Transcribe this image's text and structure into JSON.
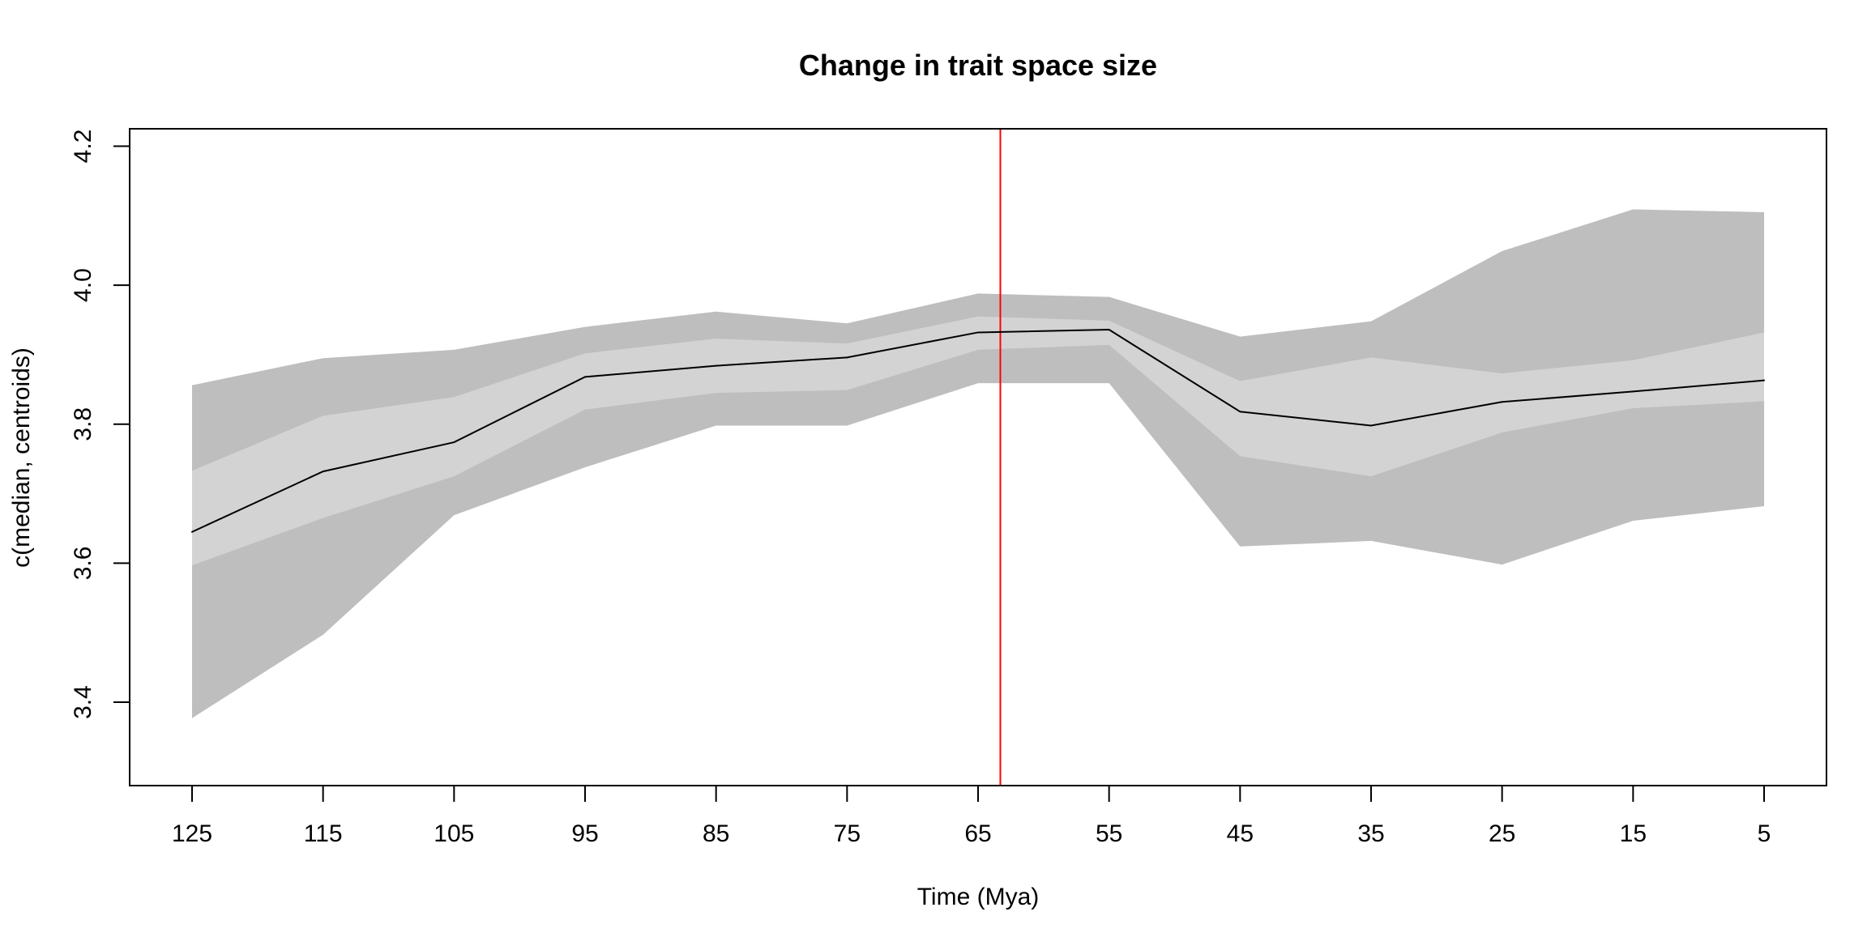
{
  "chart_data": {
    "type": "line",
    "title": "Change in trait space size",
    "xlabel": "Time (Mya)",
    "ylabel": "c(median, centroids)",
    "x": [
      125,
      115,
      105,
      95,
      85,
      75,
      65,
      55,
      45,
      35,
      25,
      15,
      5
    ],
    "x_tick_labels": [
      "125",
      "115",
      "105",
      "95",
      "85",
      "75",
      "65",
      "55",
      "45",
      "35",
      "25",
      "15",
      "5"
    ],
    "y_ticks": [
      3.4,
      3.6,
      3.8,
      4.0,
      4.2
    ],
    "y_tick_labels": [
      "3.4",
      "3.6",
      "3.8",
      "4.0",
      "4.2"
    ],
    "ylim": [
      3.28,
      4.225
    ],
    "x_axis_reversed": true,
    "series": [
      {
        "values": [
          3.645,
          3.732,
          3.774,
          3.868,
          3.884,
          3.896,
          3.932,
          3.936,
          3.818,
          3.798,
          3.832,
          3.847,
          3.863
        ]
      }
    ],
    "bands": [
      {
        "level": "outer",
        "color": "#bebebe",
        "lower": [
          3.377,
          3.497,
          3.669,
          3.738,
          3.798,
          3.798,
          3.859,
          3.859,
          3.624,
          3.632,
          3.598,
          3.661,
          3.682
        ],
        "upper": [
          3.856,
          3.895,
          3.907,
          3.94,
          3.962,
          3.945,
          3.988,
          3.983,
          3.926,
          3.948,
          4.049,
          4.109,
          4.105
        ]
      },
      {
        "level": "inner",
        "color": "#d3d3d3",
        "lower": [
          3.597,
          3.665,
          3.725,
          3.821,
          3.845,
          3.849,
          3.907,
          3.914,
          3.754,
          3.725,
          3.788,
          3.823,
          3.833
        ],
        "upper": [
          3.733,
          3.812,
          3.839,
          3.902,
          3.923,
          3.916,
          3.955,
          3.949,
          3.862,
          3.896,
          3.873,
          3.892,
          3.932
        ]
      }
    ],
    "reference_line": {
      "x": 63.3,
      "color": "#ff0000"
    },
    "line_color": "#000000",
    "grid": false,
    "legend": "none"
  }
}
